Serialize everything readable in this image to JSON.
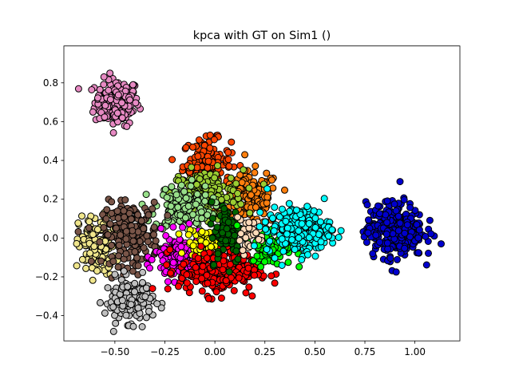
{
  "chart_data": {
    "type": "scatter",
    "title": "kpca with GT on Sim1 ()",
    "xlabel": "",
    "ylabel": "",
    "xlim": [
      -0.755,
      1.225
    ],
    "ylim": [
      -0.53,
      0.99
    ],
    "xticks": [
      -0.5,
      -0.25,
      0.0,
      0.25,
      0.5,
      0.75,
      1.0
    ],
    "xtick_labels": [
      "−0.50",
      "−0.25",
      "0.00",
      "0.25",
      "0.50",
      "0.75",
      "1.00"
    ],
    "yticks": [
      -0.4,
      -0.2,
      0.0,
      0.2,
      0.4,
      0.6,
      0.8
    ],
    "ytick_labels": [
      "−0.4",
      "−0.2",
      "0.0",
      "0.2",
      "0.4",
      "0.6",
      "0.8"
    ],
    "grid": false,
    "marker_edge_color": "#000000",
    "series": [
      {
        "color": "#e78ac3",
        "center": [
          -0.49,
          0.7
        ],
        "spread": [
          0.055,
          0.06
        ],
        "n": 180
      },
      {
        "color": "#ff4500",
        "center": [
          -0.04,
          0.39
        ],
        "spread": [
          0.06,
          0.06
        ],
        "n": 140
      },
      {
        "color": "#ff7f0e",
        "center": [
          0.18,
          0.2
        ],
        "spread": [
          0.07,
          0.07
        ],
        "n": 150
      },
      {
        "color": "#9acd32",
        "center": [
          -0.04,
          0.23
        ],
        "spread": [
          0.09,
          0.06
        ],
        "n": 170
      },
      {
        "color": "#98df8a",
        "center": [
          -0.16,
          0.16
        ],
        "spread": [
          0.07,
          0.06
        ],
        "n": 140
      },
      {
        "color": "#f0e68c",
        "center": [
          -0.59,
          -0.04
        ],
        "spread": [
          0.045,
          0.08
        ],
        "n": 140
      },
      {
        "color": "#795548",
        "center": [
          -0.42,
          0.02
        ],
        "spread": [
          0.07,
          0.08
        ],
        "n": 190
      },
      {
        "color": "#c0c0c0",
        "center": [
          -0.43,
          -0.32
        ],
        "spread": [
          0.06,
          0.055
        ],
        "n": 160
      },
      {
        "color": "#ff00ff",
        "center": [
          -0.18,
          -0.1
        ],
        "spread": [
          0.06,
          0.06
        ],
        "n": 120
      },
      {
        "color": "#ffff00",
        "center": [
          -0.06,
          -0.03
        ],
        "spread": [
          0.04,
          0.04
        ],
        "n": 60
      },
      {
        "color": "#ff0000",
        "center": [
          0.02,
          -0.17
        ],
        "spread": [
          0.1,
          0.06
        ],
        "n": 250
      },
      {
        "color": "#006400",
        "center": [
          0.06,
          0.03
        ],
        "spread": [
          0.04,
          0.08
        ],
        "n": 80
      },
      {
        "color": "#00ff00",
        "center": [
          0.28,
          -0.04
        ],
        "spread": [
          0.05,
          0.05
        ],
        "n": 100
      },
      {
        "color": "#ffdab9",
        "center": [
          0.17,
          0.02
        ],
        "spread": [
          0.04,
          0.04
        ],
        "n": 30
      },
      {
        "color": "#00ffff",
        "center": [
          0.42,
          0.04
        ],
        "spread": [
          0.08,
          0.06
        ],
        "n": 230
      },
      {
        "color": "#0000cd",
        "center": [
          0.9,
          0.04
        ],
        "spread": [
          0.07,
          0.07
        ],
        "n": 350
      }
    ]
  }
}
